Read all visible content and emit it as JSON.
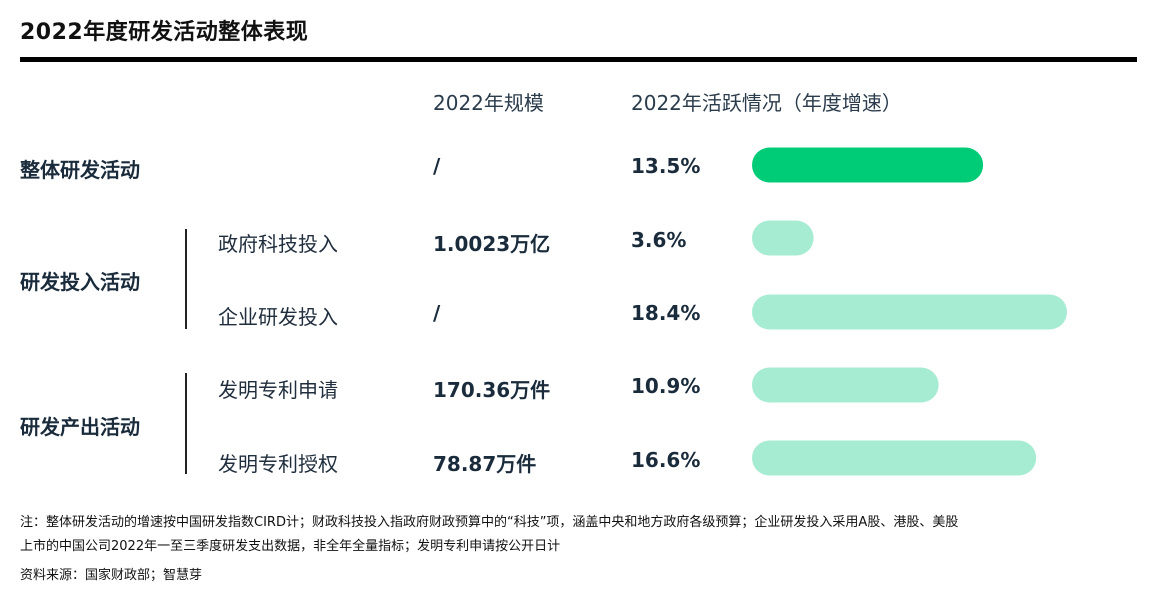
{
  "title": "2022年度研发活动整体表现",
  "headers": {
    "scale": "2022年规模",
    "activity": "2022年活跃情况（年度增速）"
  },
  "groups": [
    {
      "label": "整体研发活动"
    },
    {
      "label": "研发投入活动"
    },
    {
      "label": "研发产出活动"
    }
  ],
  "rows": [
    {
      "sub": "",
      "scale": "/",
      "pct": "13.5%"
    },
    {
      "sub": "政府科技投入",
      "scale": "1.0023万亿",
      "pct": "3.6%"
    },
    {
      "sub": "企业研发投入",
      "scale": "/",
      "pct": "18.4%"
    },
    {
      "sub": "发明专利申请",
      "scale": "170.36万件",
      "pct": "10.9%"
    },
    {
      "sub": "发明专利授权",
      "scale": "78.87万件",
      "pct": "16.6%"
    }
  ],
  "chart_data": {
    "type": "bar",
    "orientation": "horizontal",
    "title": "2022年度研发活动整体表现",
    "categories": [
      "整体研发活动",
      "政府科技投入",
      "企业研发投入",
      "发明专利申请",
      "发明专利授权"
    ],
    "values": [
      13.5,
      3.6,
      18.4,
      10.9,
      16.6
    ],
    "unit": "%",
    "xlim": [
      0,
      18.4
    ],
    "colors": [
      "#00cc77",
      "#a6ecd2",
      "#a6ecd2",
      "#a6ecd2",
      "#a6ecd2"
    ]
  },
  "notes": {
    "line1": "注：整体研发活动的增速按中国研发指数CIRD计；财政科技投入指政府财政预算中的“科技”项，涵盖中央和地方政府各级预算；企业研发投入采用A股、港股、美股",
    "line2": "上市的中国公司2022年一至三季度研发支出数据，非全年全量指标；发明专利申请按公开日计",
    "source": "资料来源：国家财政部；智慧芽"
  }
}
